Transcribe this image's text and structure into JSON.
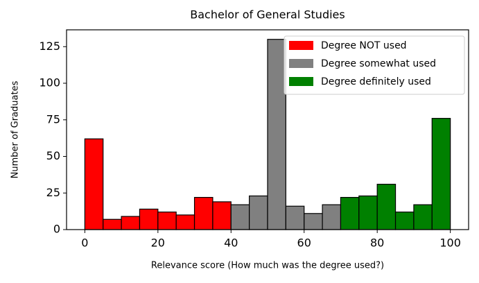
{
  "chart_data": {
    "type": "histogram",
    "title": "Bachelor of General Studies",
    "x_label": "Relevance score (How much was the degree used?)",
    "y_label": "Number of Graduates",
    "series": [
      {
        "name": "Degree NOT used",
        "color": "#ff0000",
        "bins": [
          0,
          5,
          10,
          15,
          20,
          25,
          30,
          35,
          40
        ],
        "values": [
          62,
          7,
          9,
          14,
          12,
          10,
          22,
          19
        ]
      },
      {
        "name": "Degree somewhat used",
        "color": "#808080",
        "bins": [
          40,
          45,
          50,
          55,
          60,
          65,
          70
        ],
        "values": [
          17,
          23,
          130,
          16,
          11,
          17
        ]
      },
      {
        "name": "Degree definitely used",
        "color": "#008000",
        "bins": [
          70,
          75,
          80,
          85,
          90,
          95,
          100
        ],
        "values": [
          22,
          23,
          31,
          12,
          17,
          76
        ]
      }
    ],
    "xlim": [
      -5,
      105
    ],
    "ylim": [
      0,
      136.5
    ],
    "xticks": [
      0,
      20,
      40,
      60,
      80,
      100
    ],
    "yticks": [
      0,
      25,
      50,
      75,
      100,
      125
    ],
    "legend": "upper right",
    "grid": false
  }
}
